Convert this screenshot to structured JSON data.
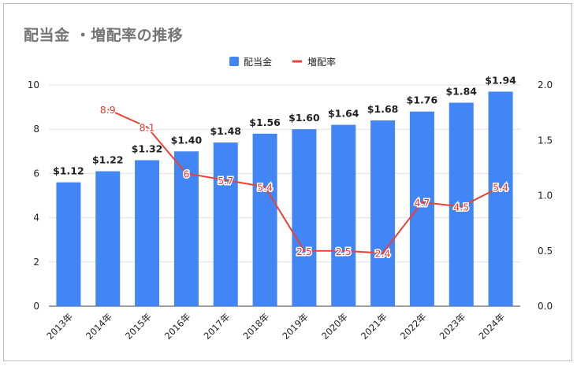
{
  "chart_data": {
    "type": "bar",
    "title": "配当金 ・増配率の推移",
    "categories": [
      "2013年",
      "2014年",
      "2015年",
      "2016年",
      "2017年",
      "2018年",
      "2019年",
      "2020年",
      "2021年",
      "2022年",
      "2023年",
      "2024年"
    ],
    "series": [
      {
        "name": "配当金",
        "type": "bar",
        "axis": "right",
        "values": [
          1.12,
          1.22,
          1.32,
          1.4,
          1.48,
          1.56,
          1.6,
          1.64,
          1.68,
          1.76,
          1.84,
          1.94
        ],
        "labels": [
          "$1.12",
          "$1.22",
          "$1.32",
          "$1.40",
          "$1.48",
          "$1.56",
          "$1.60",
          "$1.64",
          "$1.68",
          "$1.76",
          "$1.84",
          "$1.94"
        ],
        "color": "#4285f4"
      },
      {
        "name": "増配率",
        "type": "line",
        "axis": "left",
        "values": [
          null,
          8.9,
          8.1,
          6,
          5.7,
          5.4,
          2.5,
          2.5,
          2.4,
          4.7,
          4.5,
          5.4
        ],
        "labels": [
          "",
          "8.9",
          "8.1",
          "6",
          "5.7",
          "5.4",
          "2.5",
          "2.5",
          "2.4",
          "4.7",
          "4.5",
          "5.4"
        ],
        "color": "#ea4335"
      }
    ],
    "y_left": {
      "ylim": [
        0,
        10
      ],
      "ticks": [
        "0",
        "2",
        "4",
        "6",
        "8",
        "10"
      ]
    },
    "y_right": {
      "ylim": [
        0,
        2.0
      ],
      "ticks": [
        "0.0",
        "0.5",
        "1.0",
        "1.5",
        "2.0"
      ]
    },
    "legend_position": "top-center",
    "grid": true
  }
}
